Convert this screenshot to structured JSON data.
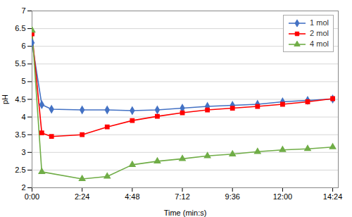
{
  "chart_data": {
    "type": "line",
    "xlabel": "Time (min:s)",
    "ylabel": "pH",
    "xlim": [
      0,
      880
    ],
    "xticks": [
      {
        "value": 0,
        "label": "0:00"
      },
      {
        "value": 144,
        "label": "2:24"
      },
      {
        "value": 288,
        "label": "4:48"
      },
      {
        "value": 432,
        "label": "7:12"
      },
      {
        "value": 576,
        "label": "9:36"
      },
      {
        "value": 720,
        "label": "12:00"
      },
      {
        "value": 864,
        "label": "14:24"
      }
    ],
    "ylim": [
      2.0,
      7.0
    ],
    "yticks": [
      2,
      2.5,
      3,
      3.5,
      4,
      4.5,
      5,
      5.5,
      6,
      6.5,
      7
    ],
    "grid": "y",
    "legend": "upper right",
    "series": [
      {
        "name": "1 mol",
        "color": "#4472C4",
        "marker": "diamond",
        "x": [
          0,
          28,
          56,
          144,
          216,
          288,
          360,
          432,
          504,
          576,
          648,
          720,
          792,
          864
        ],
        "values": [
          6.1,
          4.35,
          4.22,
          4.2,
          4.2,
          4.18,
          4.2,
          4.25,
          4.3,
          4.33,
          4.36,
          4.43,
          4.47,
          4.51
        ]
      },
      {
        "name": "2 mol",
        "color": "#FF0000",
        "marker": "square",
        "x": [
          0,
          28,
          56,
          144,
          216,
          288,
          360,
          432,
          504,
          576,
          648,
          720,
          792,
          864
        ],
        "values": [
          6.35,
          3.55,
          3.45,
          3.5,
          3.72,
          3.9,
          4.02,
          4.12,
          4.2,
          4.25,
          4.3,
          4.36,
          4.43,
          4.52
        ]
      },
      {
        "name": "4 mol",
        "color": "#70AD47",
        "marker": "triangle",
        "x": [
          0,
          28,
          144,
          216,
          288,
          360,
          432,
          504,
          576,
          648,
          720,
          792,
          864
        ],
        "values": [
          6.45,
          2.45,
          2.25,
          2.32,
          2.65,
          2.75,
          2.82,
          2.9,
          2.95,
          3.02,
          3.07,
          3.1,
          3.15
        ]
      }
    ]
  }
}
